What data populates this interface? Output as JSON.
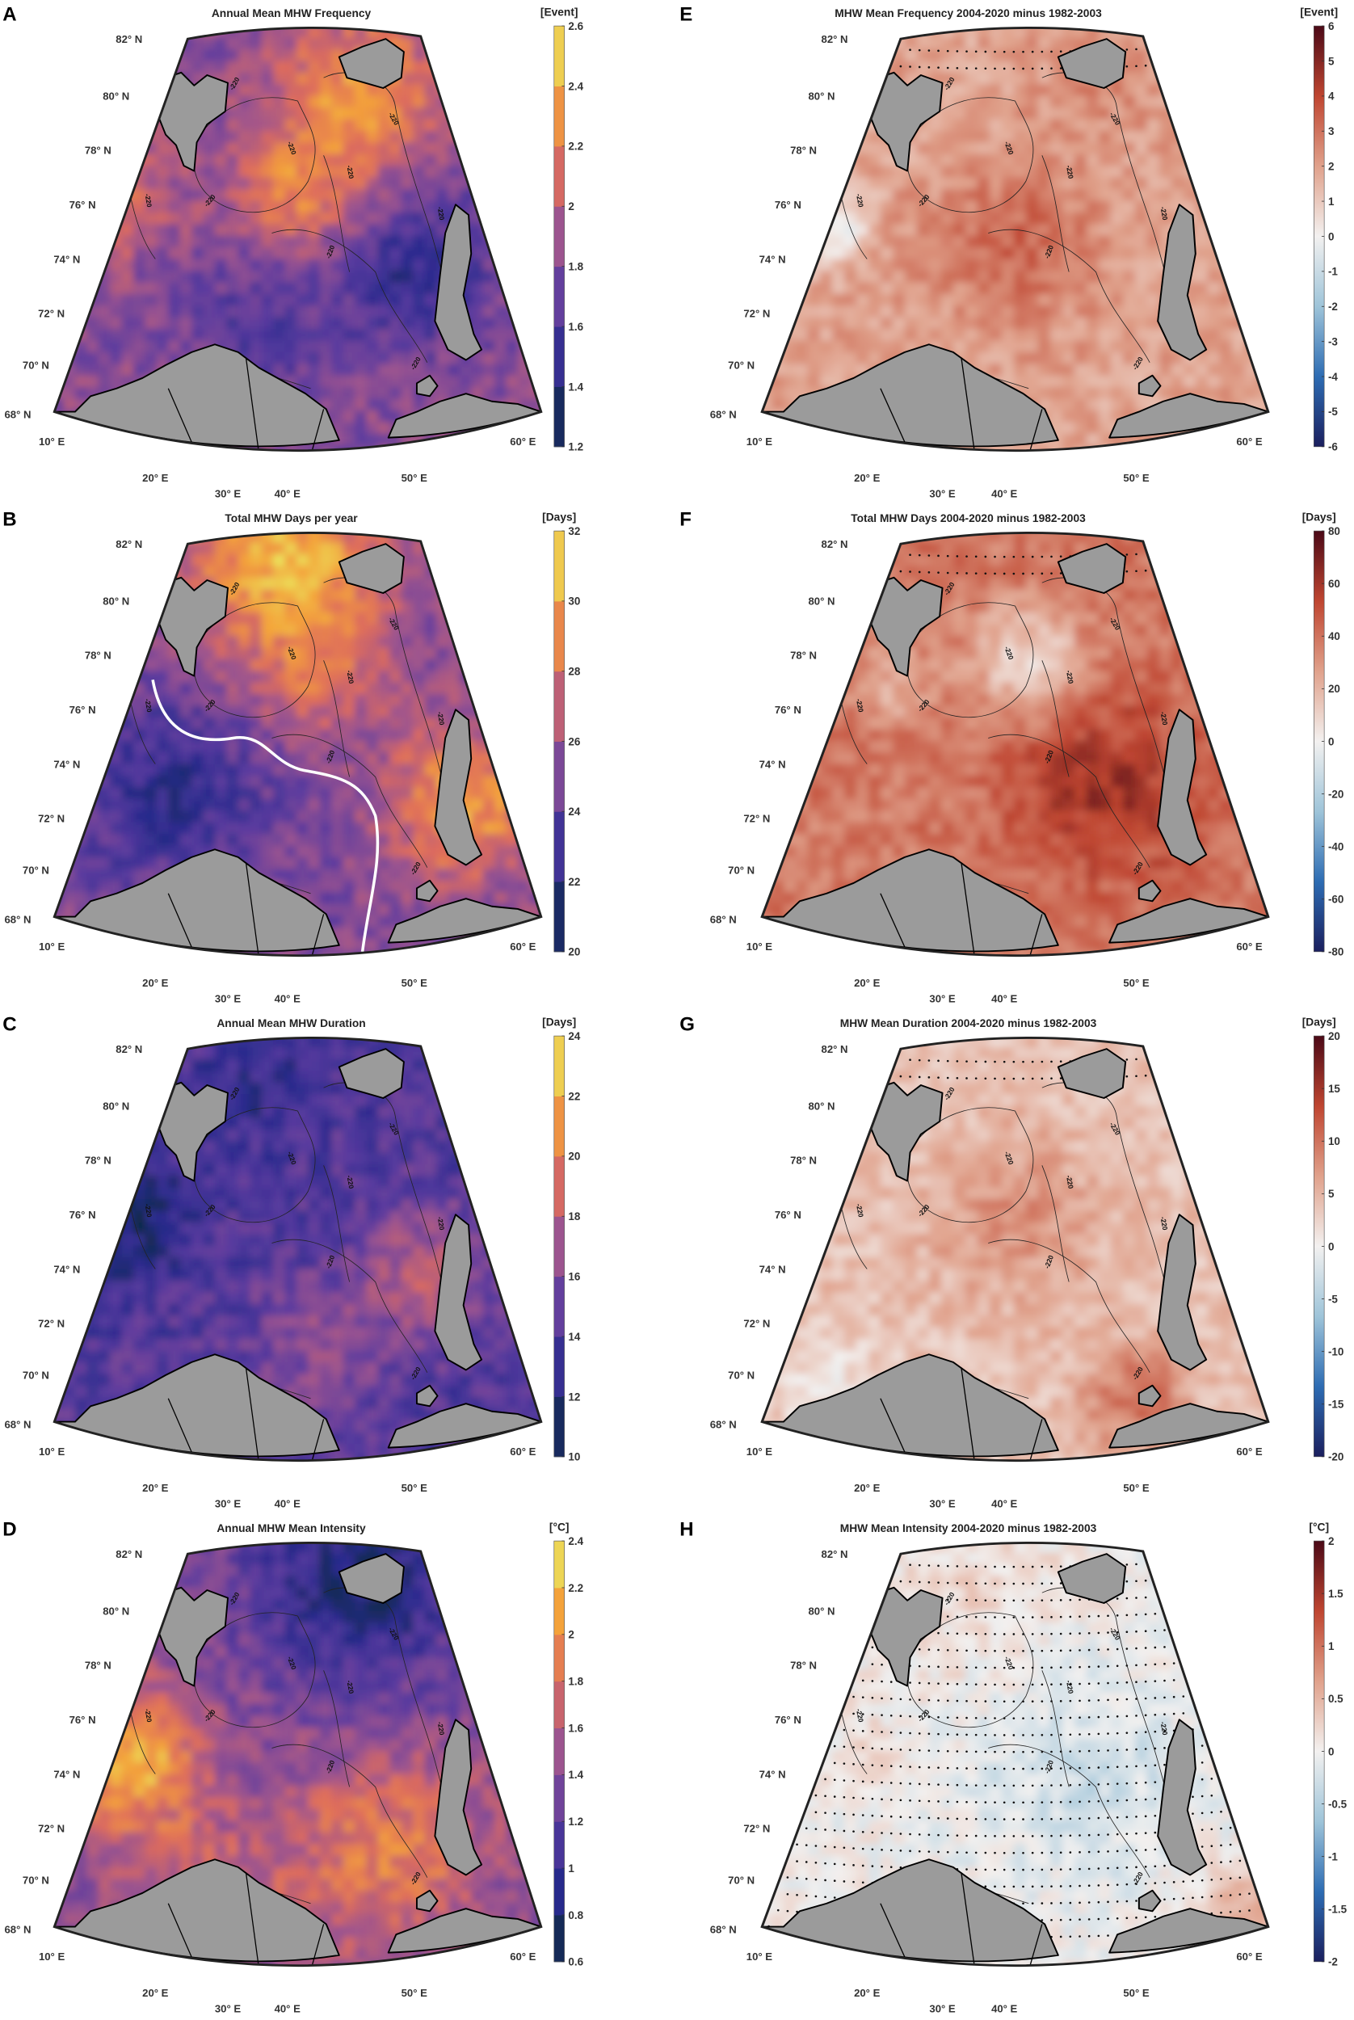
{
  "figure": {
    "contour_label": "-220",
    "lat_labels": [
      "82° N",
      "80° N",
      "78° N",
      "76° N",
      "74° N",
      "72° N",
      "70° N",
      "68° N"
    ],
    "lon_labels": [
      "10° E",
      "20° E",
      "30° E",
      "40° E",
      "50° E",
      "60° E"
    ],
    "land_color": "#9b9b9b",
    "colormaps": {
      "sequential": [
        "#0c2a3c",
        "#272a8c",
        "#5a3b9f",
        "#9c548f",
        "#de6c5c",
        "#f4a23a",
        "#e9ef62"
      ],
      "diverging": [
        "#1b1f5e",
        "#2d6cb3",
        "#9ec4d9",
        "#f3f1f0",
        "#e0a18b",
        "#bf4530",
        "#4b0917"
      ]
    },
    "panels": [
      {
        "letter": "A",
        "title": "Annual Mean MHW Frequency",
        "unit": "[Event]",
        "colormap": "sequential",
        "discrete": true,
        "ticks": [
          "1.2",
          "1.4",
          "1.6",
          "1.8",
          "2",
          "2.2",
          "2.4",
          "2.6"
        ],
        "stippled": false,
        "white_line": false
      },
      {
        "letter": "E",
        "title": "MHW Mean Frequency 2004-2020 minus 1982-2003",
        "unit": "[Event]",
        "colormap": "diverging",
        "discrete": false,
        "ticks": [
          "-6",
          "-5",
          "-4",
          "-3",
          "-2",
          "-1",
          "0",
          "1",
          "2",
          "3",
          "4",
          "5",
          "6"
        ],
        "stippled": true,
        "white_line": false
      },
      {
        "letter": "B",
        "title": "Total MHW Days per year",
        "unit": "[Days]",
        "colormap": "sequential",
        "discrete": true,
        "ticks": [
          "20",
          "22",
          "24",
          "26",
          "28",
          "30",
          "32"
        ],
        "stippled": false,
        "white_line": true
      },
      {
        "letter": "F",
        "title": "Total MHW Days 2004-2020 minus 1982-2003",
        "unit": "[Days]",
        "colormap": "diverging",
        "discrete": false,
        "ticks": [
          "-80",
          "-60",
          "-40",
          "-20",
          "0",
          "20",
          "40",
          "60",
          "80"
        ],
        "stippled": true,
        "white_line": false
      },
      {
        "letter": "C",
        "title": "Annual Mean MHW Duration",
        "unit": "[Days]",
        "colormap": "sequential",
        "discrete": true,
        "ticks": [
          "10",
          "12",
          "14",
          "16",
          "18",
          "20",
          "22",
          "24"
        ],
        "stippled": false,
        "white_line": false
      },
      {
        "letter": "G",
        "title": "MHW Mean Duration 2004-2020 minus 1982-2003",
        "unit": "[Days]",
        "colormap": "diverging",
        "discrete": false,
        "ticks": [
          "-20",
          "-15",
          "-10",
          "-5",
          "0",
          "5",
          "10",
          "15",
          "20"
        ],
        "stippled": true,
        "white_line": false
      },
      {
        "letter": "D",
        "title": "Annual MHW Mean Intensity",
        "unit": "[°C]",
        "colormap": "sequential",
        "discrete": true,
        "ticks": [
          "0.6",
          "0.8",
          "1",
          "1.2",
          "1.4",
          "1.6",
          "1.8",
          "2",
          "2.2",
          "2.4"
        ],
        "stippled": false,
        "white_line": false
      },
      {
        "letter": "H",
        "title": "MHW Mean Intensity 2004-2020 minus 1982-2003",
        "unit": "[°C]",
        "colormap": "diverging",
        "discrete": false,
        "ticks": [
          "-2",
          "-1.5",
          "-1",
          "-0.5",
          "0",
          "0.5",
          "1",
          "1.5",
          "2"
        ],
        "stippled": true,
        "white_line": false
      }
    ]
  }
}
